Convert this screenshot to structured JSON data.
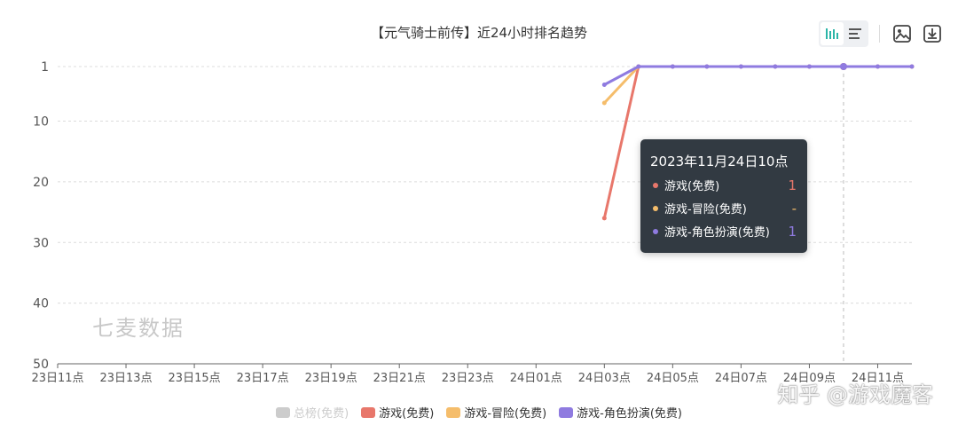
{
  "title": "【元气骑士前传】近24小时排名趋势",
  "watermark": "七麦数据",
  "source_mark": "知乎 @游戏魔客",
  "toolbar": {
    "icons": [
      "bar-chart-icon",
      "list-icon",
      "image-icon",
      "download-icon"
    ]
  },
  "tooltip": {
    "title": "2023年11月24日10点",
    "rows": [
      {
        "name": "游戏(免费)",
        "value": "1",
        "color": "#e8776b"
      },
      {
        "name": "游戏-冒险(免费)",
        "value": "-",
        "color": "#f5bd6b"
      },
      {
        "name": "游戏-角色扮演(免费)",
        "value": "1",
        "color": "#8f7be0"
      }
    ]
  },
  "legend": [
    {
      "name": "总榜(免费)",
      "color": "#cccccc",
      "active": false
    },
    {
      "name": "游戏(免费)",
      "color": "#e8776b",
      "active": true
    },
    {
      "name": "游戏-冒险(免费)",
      "color": "#f5bd6b",
      "active": true
    },
    {
      "name": "游戏-角色扮演(免费)",
      "color": "#8f7be0",
      "active": true
    }
  ],
  "chart_data": {
    "type": "line",
    "title": "【元气骑士前传】近24小时排名趋势",
    "x_tick_labels": [
      "23日11点",
      "23日13点",
      "23日15点",
      "23日17点",
      "23日19点",
      "23日21点",
      "23日23点",
      "24日01点",
      "24日03点",
      "24日05点",
      "24日07点",
      "24日09点",
      "24日11点"
    ],
    "x_hours": [
      11,
      12,
      13,
      14,
      15,
      16,
      17,
      18,
      19,
      20,
      21,
      22,
      23,
      24,
      25,
      26,
      27,
      28,
      29,
      30,
      31,
      32,
      33,
      34,
      35,
      36
    ],
    "y_ticks": [
      1,
      10,
      20,
      30,
      40,
      50
    ],
    "ylim": [
      1,
      50
    ],
    "y_inverted": true,
    "grid": true,
    "legend_position": "bottom",
    "highlight_hour": 34,
    "series": [
      {
        "name": "游戏(免费)",
        "color": "#e8776b",
        "points": [
          [
            27,
            26
          ],
          [
            28,
            1
          ],
          [
            29,
            1
          ],
          [
            30,
            1
          ],
          [
            31,
            1
          ],
          [
            32,
            1
          ],
          [
            33,
            1
          ],
          [
            34,
            1
          ],
          [
            35,
            1
          ],
          [
            36,
            1
          ]
        ]
      },
      {
        "name": "游戏-冒险(免费)",
        "color": "#f5bd6b",
        "points": [
          [
            27,
            7
          ],
          [
            28,
            1
          ]
        ]
      },
      {
        "name": "游戏-角色扮演(免费)",
        "color": "#8f7be0",
        "points": [
          [
            27,
            4
          ],
          [
            28,
            1
          ],
          [
            29,
            1
          ],
          [
            30,
            1
          ],
          [
            31,
            1
          ],
          [
            32,
            1
          ],
          [
            33,
            1
          ],
          [
            34,
            1
          ],
          [
            35,
            1
          ],
          [
            36,
            1
          ]
        ]
      }
    ]
  }
}
